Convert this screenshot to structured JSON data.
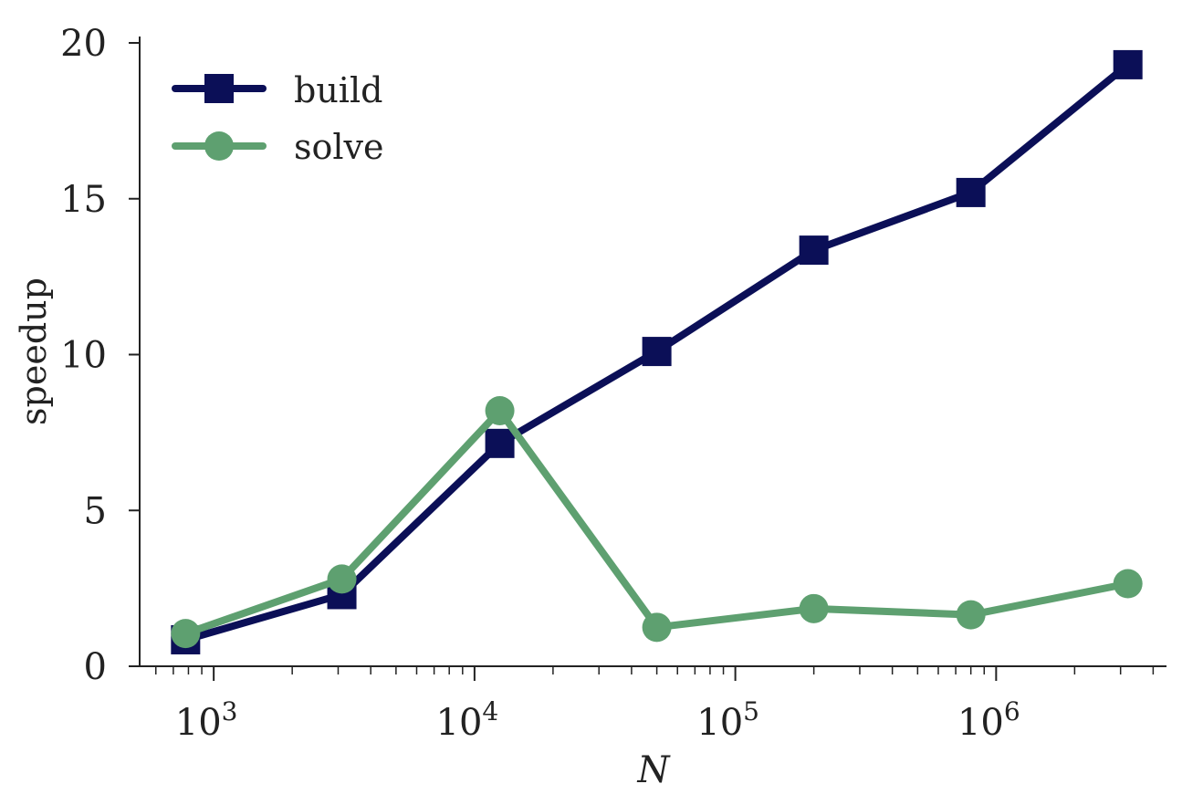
{
  "chart_data": {
    "type": "line",
    "xlabel": "N",
    "ylabel": "speedup",
    "xscale": "log",
    "xlim": [
      520,
      4500000
    ],
    "ylim": [
      0,
      20
    ],
    "grid": false,
    "legend_placement": "top-left",
    "y_ticks": [
      0,
      5,
      10,
      15,
      20
    ],
    "x_ticks": [
      {
        "value": 1000,
        "base": "10",
        "exp": "3"
      },
      {
        "value": 10000,
        "base": "10",
        "exp": "4"
      },
      {
        "value": 100000,
        "base": "10",
        "exp": "5"
      },
      {
        "value": 1000000,
        "base": "10",
        "exp": "6"
      }
    ],
    "x": [
      780,
      3100,
      12500,
      50000,
      200000,
      800000,
      3200000
    ],
    "series": [
      {
        "name": "build",
        "color": "#0b0f57",
        "marker": "square",
        "values": [
          0.85,
          2.3,
          7.15,
          10.1,
          13.35,
          15.2,
          19.3
        ]
      },
      {
        "name": "solve",
        "color": "#5ea070",
        "marker": "circle",
        "values": [
          1.05,
          2.8,
          8.2,
          1.25,
          1.85,
          1.65,
          2.65
        ]
      }
    ]
  }
}
